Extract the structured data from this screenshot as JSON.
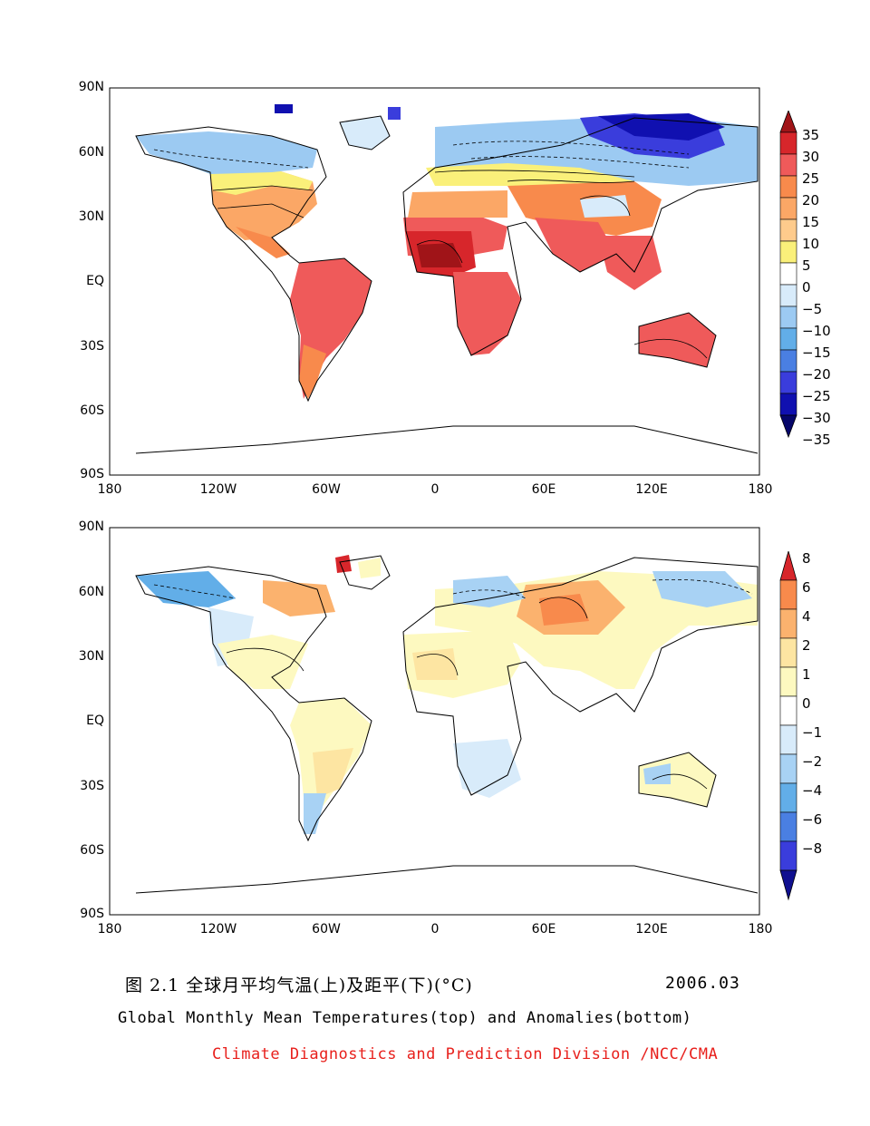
{
  "top_panel": {
    "lat_labels": [
      "90N",
      "60N",
      "30N",
      "EQ",
      "30S",
      "60S",
      "90S"
    ],
    "lon_labels": [
      "180",
      "120W",
      "60W",
      "0",
      "60E",
      "120E",
      "180"
    ],
    "colorbar": {
      "labels": [
        "35",
        "30",
        "25",
        "20",
        "15",
        "10",
        "5",
        "0",
        "−5",
        "−10",
        "−15",
        "−20",
        "−25",
        "−30",
        "−35"
      ],
      "colors": [
        "#a01418",
        "#d7262b",
        "#ef5a5a",
        "#f88a4c",
        "#fba766",
        "#fecb8c",
        "#faf07a",
        "#ffffff",
        "#d8ebfa",
        "#9ccaf2",
        "#62aee8",
        "#4a7fe2",
        "#3a3ddc",
        "#1010b0",
        "#06066a"
      ]
    }
  },
  "bottom_panel": {
    "lat_labels": [
      "90N",
      "60N",
      "30N",
      "EQ",
      "30S",
      "60S",
      "90S"
    ],
    "lon_labels": [
      "180",
      "120W",
      "60W",
      "0",
      "60E",
      "120E",
      "180"
    ],
    "colorbar": {
      "labels": [
        "8",
        "6",
        "4",
        "2",
        "1",
        "0",
        "−1",
        "−2",
        "−4",
        "−6",
        "−8"
      ],
      "colors": [
        "#d7262b",
        "#f88a4c",
        "#fbb26e",
        "#fde5a2",
        "#fdf9c0",
        "#ffffff",
        "#d8ebfa",
        "#a8d2f4",
        "#62aee8",
        "#4a7fe2",
        "#3a3ddc",
        "#101090"
      ]
    }
  },
  "caption": {
    "title_cn": "图 2.1  全球月平均气温(上)及距平(下)(°C)",
    "date": "2006.03",
    "title_en": "Global Monthly Mean Temperatures(top) and Anomalies(bottom)",
    "credit": "Climate Diagnostics and Prediction Division /NCC/CMA"
  }
}
